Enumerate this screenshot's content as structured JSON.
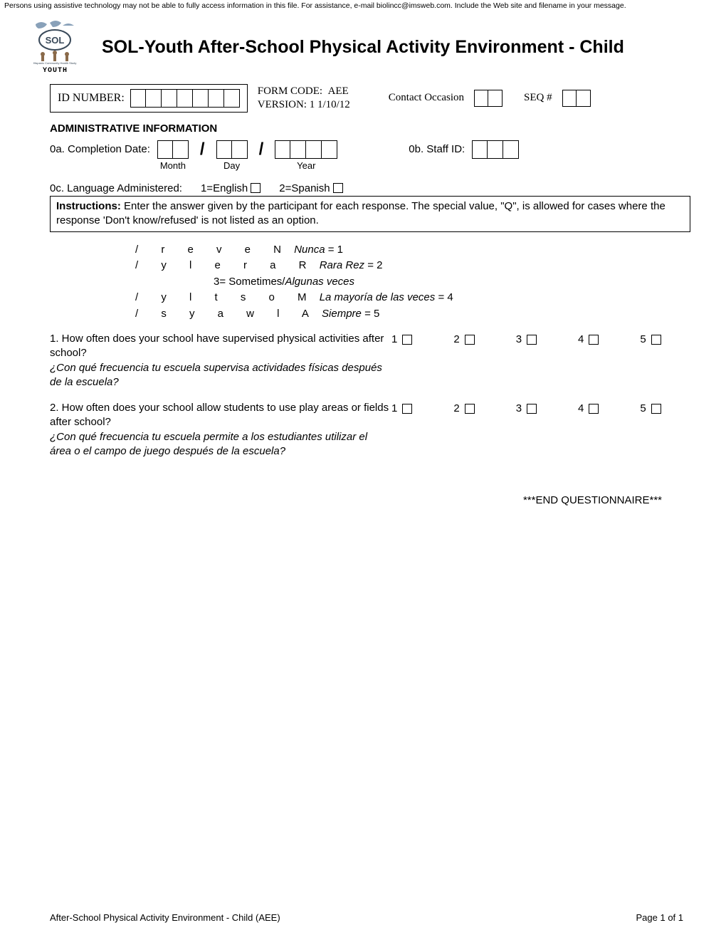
{
  "accessibility_note": "Persons using assistive technology may not be able to fully access information in this file. For assistance, e-mail biolincc@imsweb.com. Include the Web site and filename in your message.",
  "logo": {
    "caption": "YOUTH"
  },
  "title": "SOL-Youth After-School Physical Activity Environment - Child",
  "meta": {
    "id_label": "ID NUMBER:",
    "id_cells": 7,
    "formcode_label": "FORM CODE:",
    "formcode_value": "AEE",
    "version_label": "VERSION:",
    "version_value": "1   1/10/12",
    "contact_label": "Contact Occasion",
    "contact_cells": 2,
    "seq_label": "SEQ #",
    "seq_cells": 2
  },
  "admin": {
    "header": "ADMINISTRATIVE INFORMATION",
    "completion_label": "0a. Completion Date:",
    "month_label": "Month",
    "day_label": "Day",
    "year_label": "Year",
    "staff_label": "0b. Staff ID:",
    "staff_cells": 3,
    "lang_label": "0c. Language Administered:",
    "lang_en": "1=English",
    "lang_es": "2=Spanish"
  },
  "instructions": {
    "bold": "Instructions:",
    "text": "  Enter the answer given by the participant for each response.   The special value, \"Q\", is allowed for cases where the response 'Don't know/refused' is not listed as an option."
  },
  "scale": [
    {
      "en_spread": "/ r e v e N",
      "es": "Nunca",
      "eq": "= 1"
    },
    {
      "en_spread": "/ y l e r a R",
      "es": "Rara Rez",
      "eq": "= 2"
    },
    {
      "en_plain": "3= Sometimes/",
      "es": "Algunas veces",
      "eq": ""
    },
    {
      "en_spread": "/ y l t s o M",
      "es": "La mayoría de las veces",
      "eq": "= 4"
    },
    {
      "en_spread": "/ s y a w l A",
      "es": "Siempre",
      "eq": "= 5"
    }
  ],
  "questions": [
    {
      "en": "1. How often does your school have supervised physical activities after school?",
      "es": "¿Con qué frecuencia tu escuela supervisa actividades físicas después de la escuela?"
    },
    {
      "en": "2. How often does your school allow students to use play areas or fields after school?",
      "es": "¿Con qué frecuencia tu escuela permite a los estudiantes utilizar el área o el campo de juego después de la escuela?"
    }
  ],
  "option_values": [
    "1",
    "2",
    "3",
    "4",
    "5"
  ],
  "end_text": "***END QUESTIONNAIRE***",
  "footer": {
    "left": "After-School Physical Activity Environment - Child (AEE)",
    "right": "Page 1 of 1"
  },
  "colors": {
    "text": "#000000",
    "background": "#ffffff",
    "logo_blue": "#6b8aa8",
    "logo_dark": "#3a4a5a"
  }
}
